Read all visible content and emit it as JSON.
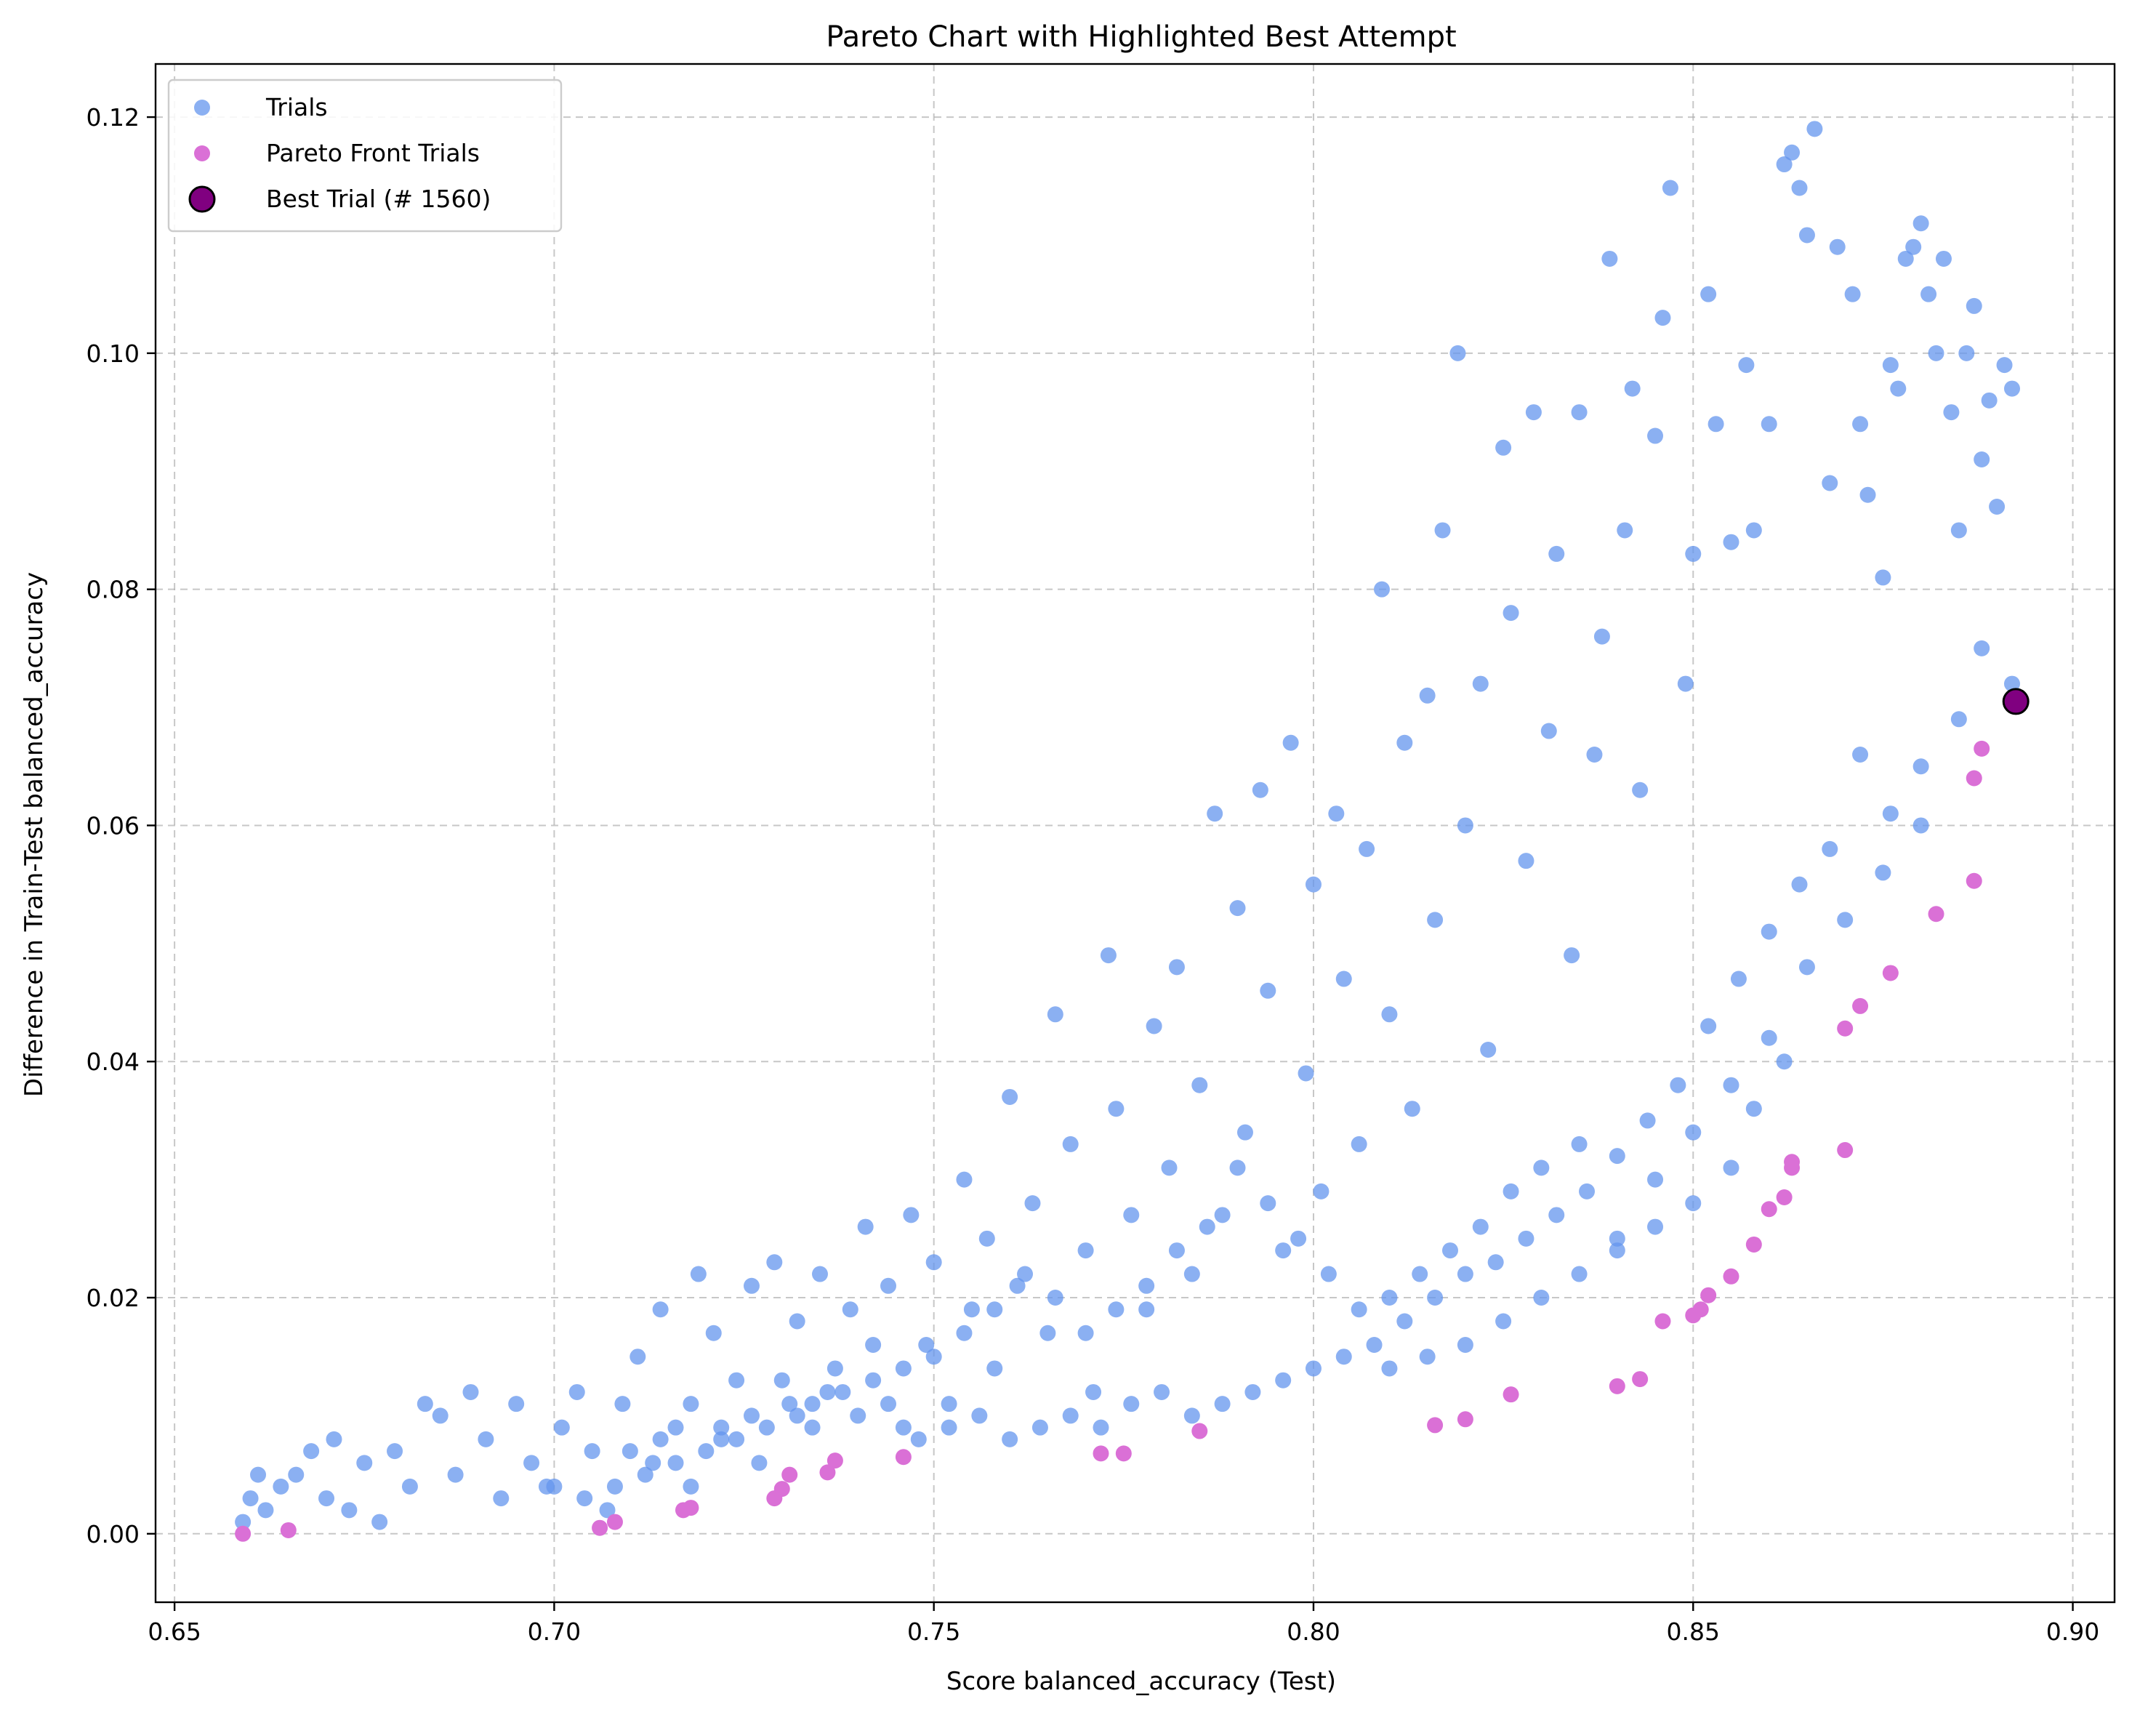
{
  "chart_data": {
    "type": "scatter",
    "title": "Pareto Chart with Highlighted Best Attempt",
    "xlabel": "Score balanced_accuracy (Test)",
    "ylabel": "Difference in Train-Test balanced_accuracy",
    "xlim": [
      0.6475,
      0.9055
    ],
    "ylim": [
      -0.0058,
      0.1245
    ],
    "xticks": [
      "0.65",
      "0.70",
      "0.75",
      "0.80",
      "0.85",
      "0.90"
    ],
    "xtick_values": [
      0.65,
      0.7,
      0.75,
      0.8,
      0.85,
      0.9
    ],
    "yticks": [
      "0.00",
      "0.02",
      "0.04",
      "0.06",
      "0.08",
      "0.10",
      "0.12"
    ],
    "ytick_values": [
      0.0,
      0.02,
      0.04,
      0.06,
      0.08,
      0.1,
      0.12
    ],
    "grid": true,
    "legend_position": "top-left",
    "colors": {
      "trials": "#6495ED",
      "pareto": "#DA70D6",
      "best": "#800080",
      "best_edge": "#000000"
    },
    "series": [
      {
        "name": "Trials",
        "points": [
          [
            0.659,
            0.001
          ],
          [
            0.66,
            0.003
          ],
          [
            0.661,
            0.005
          ],
          [
            0.662,
            0.002
          ],
          [
            0.664,
            0.004
          ],
          [
            0.666,
            0.005
          ],
          [
            0.668,
            0.007
          ],
          [
            0.67,
            0.003
          ],
          [
            0.671,
            0.008
          ],
          [
            0.673,
            0.002
          ],
          [
            0.675,
            0.006
          ],
          [
            0.677,
            0.001
          ],
          [
            0.679,
            0.007
          ],
          [
            0.681,
            0.004
          ],
          [
            0.683,
            0.011
          ],
          [
            0.685,
            0.01
          ],
          [
            0.687,
            0.005
          ],
          [
            0.689,
            0.012
          ],
          [
            0.691,
            0.008
          ],
          [
            0.693,
            0.003
          ],
          [
            0.695,
            0.011
          ],
          [
            0.697,
            0.006
          ],
          [
            0.699,
            0.004
          ],
          [
            0.701,
            0.009
          ],
          [
            0.703,
            0.012
          ],
          [
            0.705,
            0.007
          ],
          [
            0.707,
            0.002
          ],
          [
            0.709,
            0.011
          ],
          [
            0.711,
            0.015
          ],
          [
            0.713,
            0.006
          ],
          [
            0.714,
            0.019
          ],
          [
            0.716,
            0.009
          ],
          [
            0.718,
            0.004
          ],
          [
            0.719,
            0.022
          ],
          [
            0.721,
            0.017
          ],
          [
            0.722,
            0.008
          ],
          [
            0.724,
            0.013
          ],
          [
            0.726,
            0.021
          ],
          [
            0.727,
            0.006
          ],
          [
            0.729,
            0.023
          ],
          [
            0.731,
            0.011
          ],
          [
            0.732,
            0.018
          ],
          [
            0.734,
            0.009
          ],
          [
            0.735,
            0.022
          ],
          [
            0.737,
            0.014
          ],
          [
            0.739,
            0.019
          ],
          [
            0.741,
            0.026
          ],
          [
            0.742,
            0.013
          ],
          [
            0.744,
            0.021
          ],
          [
            0.746,
            0.009
          ],
          [
            0.747,
            0.027
          ],
          [
            0.749,
            0.016
          ],
          [
            0.75,
            0.023
          ],
          [
            0.752,
            0.011
          ],
          [
            0.754,
            0.03
          ],
          [
            0.755,
            0.019
          ],
          [
            0.757,
            0.025
          ],
          [
            0.758,
            0.014
          ],
          [
            0.76,
            0.037
          ],
          [
            0.761,
            0.021
          ],
          [
            0.763,
            0.028
          ],
          [
            0.765,
            0.017
          ],
          [
            0.766,
            0.044
          ],
          [
            0.768,
            0.033
          ],
          [
            0.77,
            0.024
          ],
          [
            0.771,
            0.012
          ],
          [
            0.773,
            0.049
          ],
          [
            0.774,
            0.036
          ],
          [
            0.776,
            0.027
          ],
          [
            0.778,
            0.019
          ],
          [
            0.779,
            0.043
          ],
          [
            0.781,
            0.031
          ],
          [
            0.782,
            0.048
          ],
          [
            0.784,
            0.022
          ],
          [
            0.785,
            0.038
          ],
          [
            0.787,
            0.061
          ],
          [
            0.788,
            0.027
          ],
          [
            0.79,
            0.053
          ],
          [
            0.791,
            0.034
          ],
          [
            0.793,
            0.063
          ],
          [
            0.794,
            0.046
          ],
          [
            0.796,
            0.024
          ],
          [
            0.797,
            0.067
          ],
          [
            0.799,
            0.039
          ],
          [
            0.8,
            0.055
          ],
          [
            0.801,
            0.029
          ],
          [
            0.803,
            0.061
          ],
          [
            0.804,
            0.047
          ],
          [
            0.806,
            0.033
          ],
          [
            0.807,
            0.058
          ],
          [
            0.809,
            0.08
          ],
          [
            0.81,
            0.044
          ],
          [
            0.812,
            0.067
          ],
          [
            0.813,
            0.036
          ],
          [
            0.815,
            0.071
          ],
          [
            0.816,
            0.052
          ],
          [
            0.817,
            0.085
          ],
          [
            0.819,
            0.1
          ],
          [
            0.82,
            0.06
          ],
          [
            0.822,
            0.072
          ],
          [
            0.823,
            0.041
          ],
          [
            0.825,
            0.092
          ],
          [
            0.826,
            0.078
          ],
          [
            0.828,
            0.057
          ],
          [
            0.829,
            0.095
          ],
          [
            0.831,
            0.068
          ],
          [
            0.832,
            0.083
          ],
          [
            0.834,
            0.049
          ],
          [
            0.835,
            0.095
          ],
          [
            0.837,
            0.066
          ],
          [
            0.838,
            0.076
          ],
          [
            0.839,
            0.108
          ],
          [
            0.841,
            0.085
          ],
          [
            0.842,
            0.097
          ],
          [
            0.843,
            0.063
          ],
          [
            0.845,
            0.093
          ],
          [
            0.846,
            0.103
          ],
          [
            0.847,
            0.114
          ],
          [
            0.849,
            0.072
          ],
          [
            0.85,
            0.083
          ],
          [
            0.852,
            0.105
          ],
          [
            0.853,
            0.094
          ],
          [
            0.855,
            0.084
          ],
          [
            0.857,
            0.099
          ],
          [
            0.858,
            0.085
          ],
          [
            0.86,
            0.094
          ],
          [
            0.862,
            0.116
          ],
          [
            0.863,
            0.117
          ],
          [
            0.864,
            0.114
          ],
          [
            0.865,
            0.11
          ],
          [
            0.866,
            0.119
          ],
          [
            0.868,
            0.089
          ],
          [
            0.869,
            0.109
          ],
          [
            0.871,
            0.105
          ],
          [
            0.872,
            0.094
          ],
          [
            0.873,
            0.088
          ],
          [
            0.875,
            0.081
          ],
          [
            0.876,
            0.099
          ],
          [
            0.877,
            0.097
          ],
          [
            0.878,
            0.108
          ],
          [
            0.879,
            0.109
          ],
          [
            0.88,
            0.111
          ],
          [
            0.881,
            0.105
          ],
          [
            0.882,
            0.1
          ],
          [
            0.883,
            0.108
          ],
          [
            0.884,
            0.095
          ],
          [
            0.885,
            0.085
          ],
          [
            0.886,
            0.1
          ],
          [
            0.887,
            0.104
          ],
          [
            0.888,
            0.091
          ],
          [
            0.889,
            0.096
          ],
          [
            0.89,
            0.087
          ],
          [
            0.891,
            0.099
          ],
          [
            0.892,
            0.097
          ],
          [
            0.892,
            0.072
          ],
          [
            0.888,
            0.075
          ],
          [
            0.885,
            0.069
          ],
          [
            0.88,
            0.065
          ],
          [
            0.876,
            0.061
          ],
          [
            0.872,
            0.066
          ],
          [
            0.868,
            0.058
          ],
          [
            0.864,
            0.055
          ],
          [
            0.86,
            0.051
          ],
          [
            0.856,
            0.047
          ],
          [
            0.852,
            0.043
          ],
          [
            0.848,
            0.038
          ],
          [
            0.844,
            0.035
          ],
          [
            0.84,
            0.032
          ],
          [
            0.836,
            0.029
          ],
          [
            0.832,
            0.027
          ],
          [
            0.828,
            0.025
          ],
          [
            0.824,
            0.023
          ],
          [
            0.82,
            0.022
          ],
          [
            0.816,
            0.02
          ],
          [
            0.812,
            0.018
          ],
          [
            0.808,
            0.016
          ],
          [
            0.804,
            0.015
          ],
          [
            0.8,
            0.014
          ],
          [
            0.796,
            0.013
          ],
          [
            0.792,
            0.012
          ],
          [
            0.788,
            0.011
          ],
          [
            0.784,
            0.01
          ],
          [
            0.78,
            0.012
          ],
          [
            0.776,
            0.011
          ],
          [
            0.772,
            0.009
          ],
          [
            0.768,
            0.01
          ],
          [
            0.764,
            0.009
          ],
          [
            0.76,
            0.008
          ],
          [
            0.756,
            0.01
          ],
          [
            0.752,
            0.009
          ],
          [
            0.748,
            0.008
          ],
          [
            0.744,
            0.011
          ],
          [
            0.74,
            0.01
          ],
          [
            0.736,
            0.012
          ],
          [
            0.732,
            0.01
          ],
          [
            0.728,
            0.009
          ],
          [
            0.724,
            0.008
          ],
          [
            0.72,
            0.007
          ],
          [
            0.716,
            0.006
          ],
          [
            0.712,
            0.005
          ],
          [
            0.708,
            0.004
          ],
          [
            0.704,
            0.003
          ],
          [
            0.7,
            0.004
          ],
          [
            0.84,
            0.025
          ],
          [
            0.845,
            0.03
          ],
          [
            0.85,
            0.034
          ],
          [
            0.855,
            0.038
          ],
          [
            0.86,
            0.042
          ],
          [
            0.865,
            0.048
          ],
          [
            0.87,
            0.052
          ],
          [
            0.875,
            0.056
          ],
          [
            0.88,
            0.06
          ],
          [
            0.835,
            0.022
          ],
          [
            0.83,
            0.02
          ],
          [
            0.825,
            0.018
          ],
          [
            0.82,
            0.016
          ],
          [
            0.815,
            0.015
          ],
          [
            0.81,
            0.014
          ],
          [
            0.858,
            0.036
          ],
          [
            0.862,
            0.04
          ],
          [
            0.855,
            0.031
          ],
          [
            0.85,
            0.028
          ],
          [
            0.845,
            0.026
          ],
          [
            0.84,
            0.024
          ],
          [
            0.835,
            0.033
          ],
          [
            0.83,
            0.031
          ],
          [
            0.826,
            0.029
          ],
          [
            0.822,
            0.026
          ],
          [
            0.818,
            0.024
          ],
          [
            0.814,
            0.022
          ],
          [
            0.81,
            0.02
          ],
          [
            0.806,
            0.019
          ],
          [
            0.802,
            0.022
          ],
          [
            0.798,
            0.025
          ],
          [
            0.794,
            0.028
          ],
          [
            0.79,
            0.031
          ],
          [
            0.786,
            0.026
          ],
          [
            0.782,
            0.024
          ],
          [
            0.778,
            0.021
          ],
          [
            0.774,
            0.019
          ],
          [
            0.77,
            0.017
          ],
          [
            0.766,
            0.02
          ],
          [
            0.762,
            0.022
          ],
          [
            0.758,
            0.019
          ],
          [
            0.754,
            0.017
          ],
          [
            0.75,
            0.015
          ],
          [
            0.746,
            0.014
          ],
          [
            0.742,
            0.016
          ],
          [
            0.738,
            0.012
          ],
          [
            0.734,
            0.011
          ],
          [
            0.73,
            0.013
          ],
          [
            0.726,
            0.01
          ],
          [
            0.722,
            0.009
          ],
          [
            0.718,
            0.011
          ],
          [
            0.714,
            0.008
          ],
          [
            0.71,
            0.007
          ]
        ]
      },
      {
        "name": "Pareto Front Trials",
        "points": [
          [
            0.659,
            0.0
          ],
          [
            0.665,
            0.0003
          ],
          [
            0.706,
            0.0005
          ],
          [
            0.708,
            0.001
          ],
          [
            0.717,
            0.002
          ],
          [
            0.718,
            0.0022
          ],
          [
            0.729,
            0.003
          ],
          [
            0.73,
            0.0038
          ],
          [
            0.731,
            0.005
          ],
          [
            0.736,
            0.0052
          ],
          [
            0.737,
            0.0062
          ],
          [
            0.746,
            0.0065
          ],
          [
            0.772,
            0.0068
          ],
          [
            0.775,
            0.0068
          ],
          [
            0.785,
            0.0087
          ],
          [
            0.816,
            0.0092
          ],
          [
            0.82,
            0.0097
          ],
          [
            0.826,
            0.0118
          ],
          [
            0.84,
            0.0125
          ],
          [
            0.843,
            0.0131
          ],
          [
            0.846,
            0.018
          ],
          [
            0.85,
            0.0185
          ],
          [
            0.851,
            0.019
          ],
          [
            0.852,
            0.0202
          ],
          [
            0.855,
            0.0218
          ],
          [
            0.858,
            0.0245
          ],
          [
            0.86,
            0.0275
          ],
          [
            0.862,
            0.0285
          ],
          [
            0.863,
            0.031
          ],
          [
            0.863,
            0.0315
          ],
          [
            0.87,
            0.0325
          ],
          [
            0.87,
            0.0428
          ],
          [
            0.872,
            0.0447
          ],
          [
            0.876,
            0.0475
          ],
          [
            0.882,
            0.0525
          ],
          [
            0.887,
            0.0553
          ],
          [
            0.887,
            0.064
          ],
          [
            0.888,
            0.0665
          ]
        ]
      },
      {
        "name": "Best Trial (# 1560)",
        "points": [
          [
            0.8925,
            0.0705
          ]
        ]
      }
    ]
  }
}
